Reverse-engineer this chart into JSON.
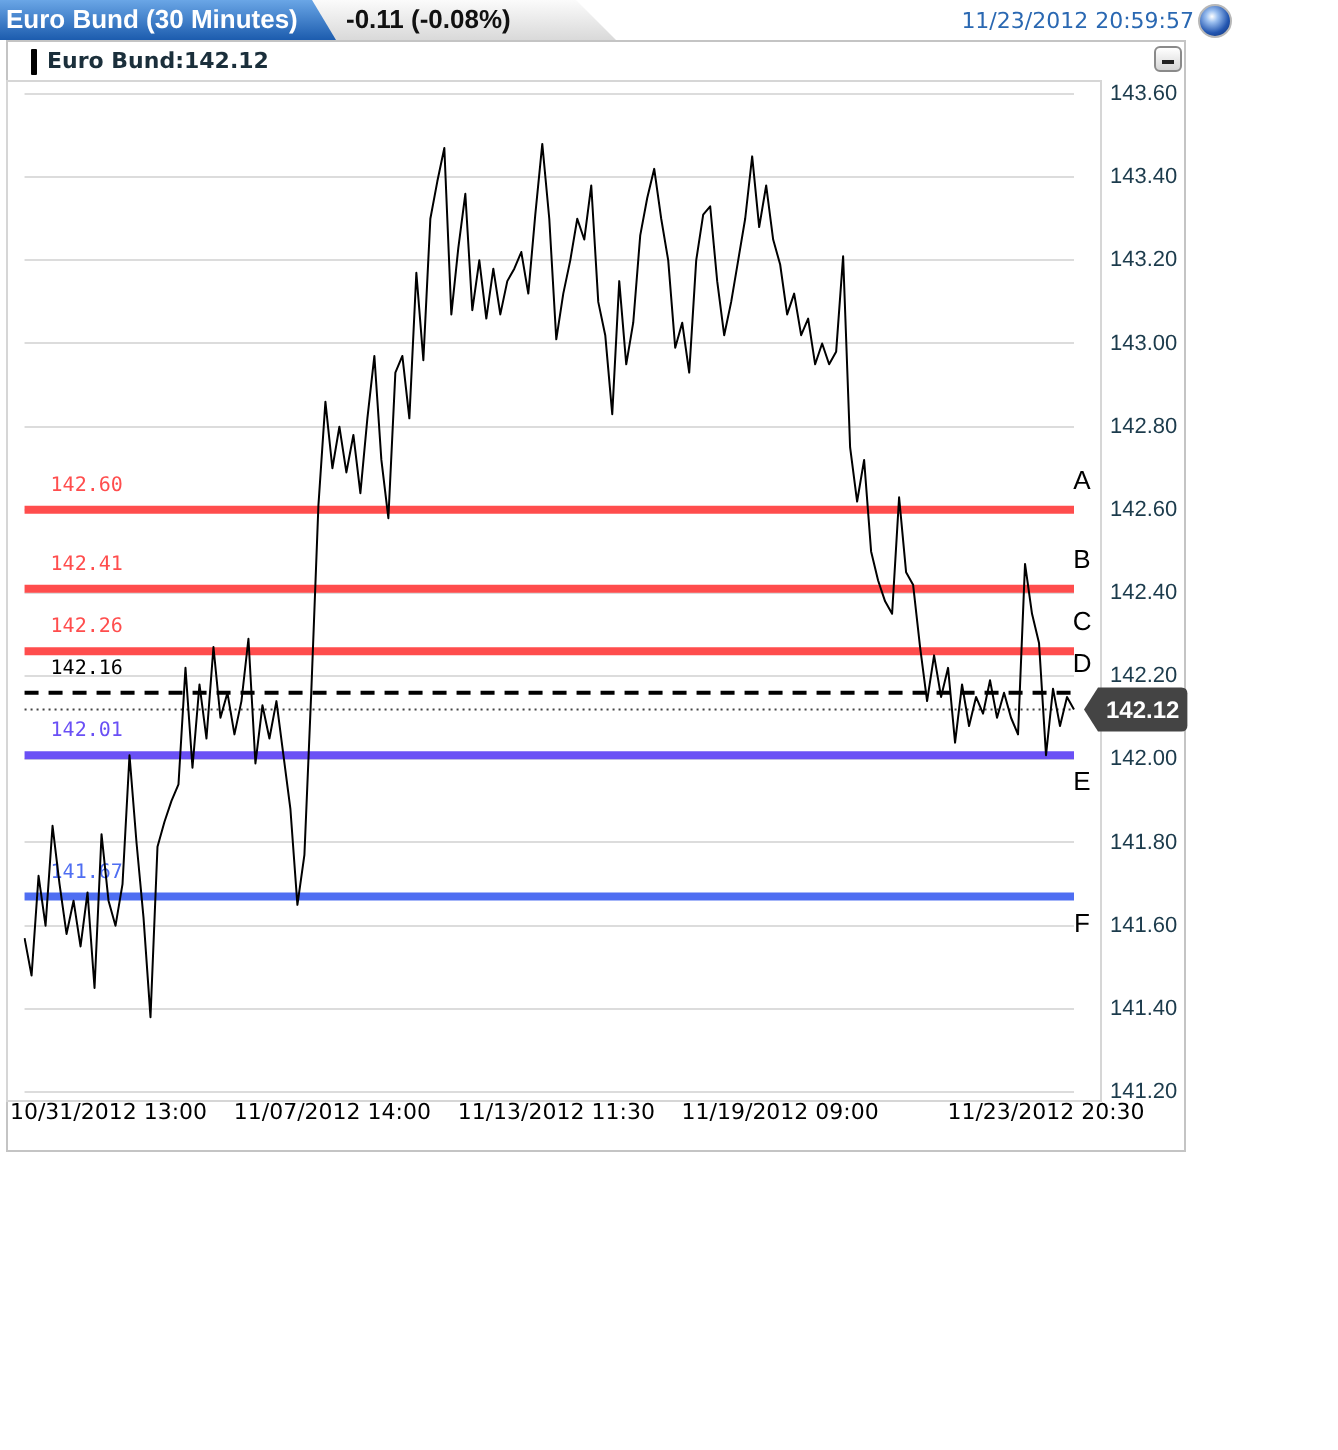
{
  "chart_data": {
    "type": "line",
    "title": "Euro Bund (30 Minutes)",
    "subtitle": "-0.11 (-0.08%)",
    "categories": [
      null,
      null,
      null,
      null,
      null,
      null,
      null,
      null,
      null,
      null,
      null,
      null,
      "10/31/2012 13:00",
      null,
      null,
      null,
      null,
      null,
      null,
      null,
      null,
      null,
      null,
      null,
      null,
      null,
      null,
      null,
      null,
      null,
      null,
      null,
      null,
      null,
      null,
      null,
      null,
      null,
      null,
      null,
      null,
      null,
      null,
      null,
      "11/07/2012 14:00",
      null,
      null,
      null,
      null,
      null,
      null,
      null,
      null,
      null,
      null,
      null,
      null,
      null,
      null,
      null,
      null,
      null,
      null,
      null,
      null,
      null,
      null,
      null,
      null,
      null,
      null,
      null,
      null,
      null,
      null,
      null,
      "11/13/2012 11:30",
      null,
      null,
      null,
      null,
      null,
      null,
      null,
      null,
      null,
      null,
      null,
      null,
      null,
      null,
      null,
      null,
      null,
      null,
      null,
      null,
      null,
      null,
      null,
      null,
      null,
      null,
      null,
      null,
      null,
      null,
      null,
      "11/19/2012 09:00",
      null,
      null,
      null,
      null,
      null,
      null,
      null,
      null,
      null,
      null,
      null,
      null,
      null,
      null,
      null,
      null,
      null,
      null,
      null,
      null,
      null,
      null,
      null,
      null,
      null,
      null,
      null,
      null,
      null,
      null,
      null,
      null,
      null,
      null,
      null,
      null,
      null,
      "11/23/2012 20:30",
      null,
      null,
      null,
      null
    ],
    "series": [
      {
        "name": "Euro Bund:142.12",
        "color": "#000000",
        "values": [
          141.57,
          141.48,
          141.72,
          141.6,
          141.84,
          141.7,
          141.58,
          141.66,
          141.55,
          141.68,
          141.45,
          141.82,
          141.66,
          141.6,
          141.7,
          142.01,
          141.8,
          141.62,
          141.38,
          141.79,
          141.85,
          141.9,
          141.94,
          142.22,
          141.98,
          142.18,
          142.05,
          142.27,
          142.1,
          142.16,
          142.06,
          142.14,
          142.29,
          141.99,
          142.13,
          142.05,
          142.14,
          142.01,
          141.88,
          141.65,
          141.77,
          142.17,
          142.61,
          142.86,
          142.7,
          142.8,
          142.69,
          142.78,
          142.64,
          142.82,
          142.97,
          142.72,
          142.58,
          142.93,
          142.97,
          142.82,
          143.17,
          142.96,
          143.3,
          143.39,
          143.47,
          143.07,
          143.23,
          143.36,
          143.08,
          143.2,
          143.06,
          143.18,
          143.07,
          143.15,
          143.18,
          143.22,
          143.12,
          143.31,
          143.48,
          143.3,
          143.01,
          143.12,
          143.2,
          143.3,
          143.25,
          143.38,
          143.1,
          143.02,
          142.83,
          143.15,
          142.95,
          143.05,
          143.26,
          143.35,
          143.42,
          143.3,
          143.2,
          142.99,
          143.05,
          142.93,
          143.2,
          143.31,
          143.33,
          143.15,
          143.02,
          143.1,
          143.2,
          143.3,
          143.45,
          143.28,
          143.38,
          143.25,
          143.19,
          143.07,
          143.12,
          143.02,
          143.06,
          142.95,
          143.0,
          142.95,
          142.98,
          143.21,
          142.75,
          142.62,
          142.72,
          142.5,
          142.43,
          142.38,
          142.35,
          142.63,
          142.45,
          142.42,
          142.27,
          142.14,
          142.25,
          142.15,
          142.22,
          142.04,
          142.18,
          142.08,
          142.15,
          142.11,
          142.19,
          142.1,
          142.16,
          142.1,
          142.06,
          142.47,
          142.35,
          142.28,
          142.01,
          142.17,
          142.08,
          142.15,
          142.12
        ]
      }
    ],
    "ylim": [
      141.2,
      143.6
    ],
    "yticks": [
      {
        "value": 141.2,
        "label": "141.20"
      },
      {
        "value": 141.4,
        "label": "141.40"
      },
      {
        "value": 141.6,
        "label": "141.60"
      },
      {
        "value": 141.8,
        "label": "141.80"
      },
      {
        "value": 142.0,
        "label": "142.00"
      },
      {
        "value": 142.2,
        "label": "142.20"
      },
      {
        "value": 142.4,
        "label": "142.40"
      },
      {
        "value": 142.6,
        "label": "142.60"
      },
      {
        "value": 142.8,
        "label": "142.80"
      },
      {
        "value": 143.0,
        "label": "143.00"
      },
      {
        "value": 143.2,
        "label": "143.20"
      },
      {
        "value": 143.4,
        "label": "143.40"
      },
      {
        "value": 143.6,
        "label": "143.60"
      }
    ],
    "grid": "y",
    "legend": "top left",
    "ref_lines": [
      {
        "axis": "y",
        "value": 142.6,
        "label": "142.60",
        "color": "#ff4d4d",
        "line_style": "solid"
      },
      {
        "axis": "y",
        "value": 142.41,
        "label": "142.41",
        "color": "#ff4d4d",
        "line_style": "solid"
      },
      {
        "axis": "y",
        "value": 142.26,
        "label": "142.26",
        "color": "#ff4d4d",
        "line_style": "solid"
      },
      {
        "axis": "y",
        "value": 142.16,
        "label": "142.16",
        "color": "#000000",
        "line_style": "dashed"
      },
      {
        "axis": "y",
        "value": 142.12,
        "label": "142.12",
        "color": "#444444",
        "line_style": "dotted"
      },
      {
        "axis": "y",
        "value": 142.01,
        "label": "142.01",
        "color": "#6a50f5",
        "line_style": "solid"
      },
      {
        "axis": "y",
        "value": 141.67,
        "label": "141.67",
        "color": "#4f6ef2",
        "line_style": "solid"
      }
    ],
    "annotations": [
      "11/23/2012 20:59:57",
      {
        "text": "A",
        "y": 142.6
      },
      {
        "text": "B",
        "y": 142.41
      },
      {
        "text": "C",
        "y": 142.26
      },
      {
        "text": "D",
        "y": 142.16
      },
      {
        "text": "E",
        "y": 142.01
      },
      {
        "text": "F",
        "y": 141.67
      }
    ]
  }
}
